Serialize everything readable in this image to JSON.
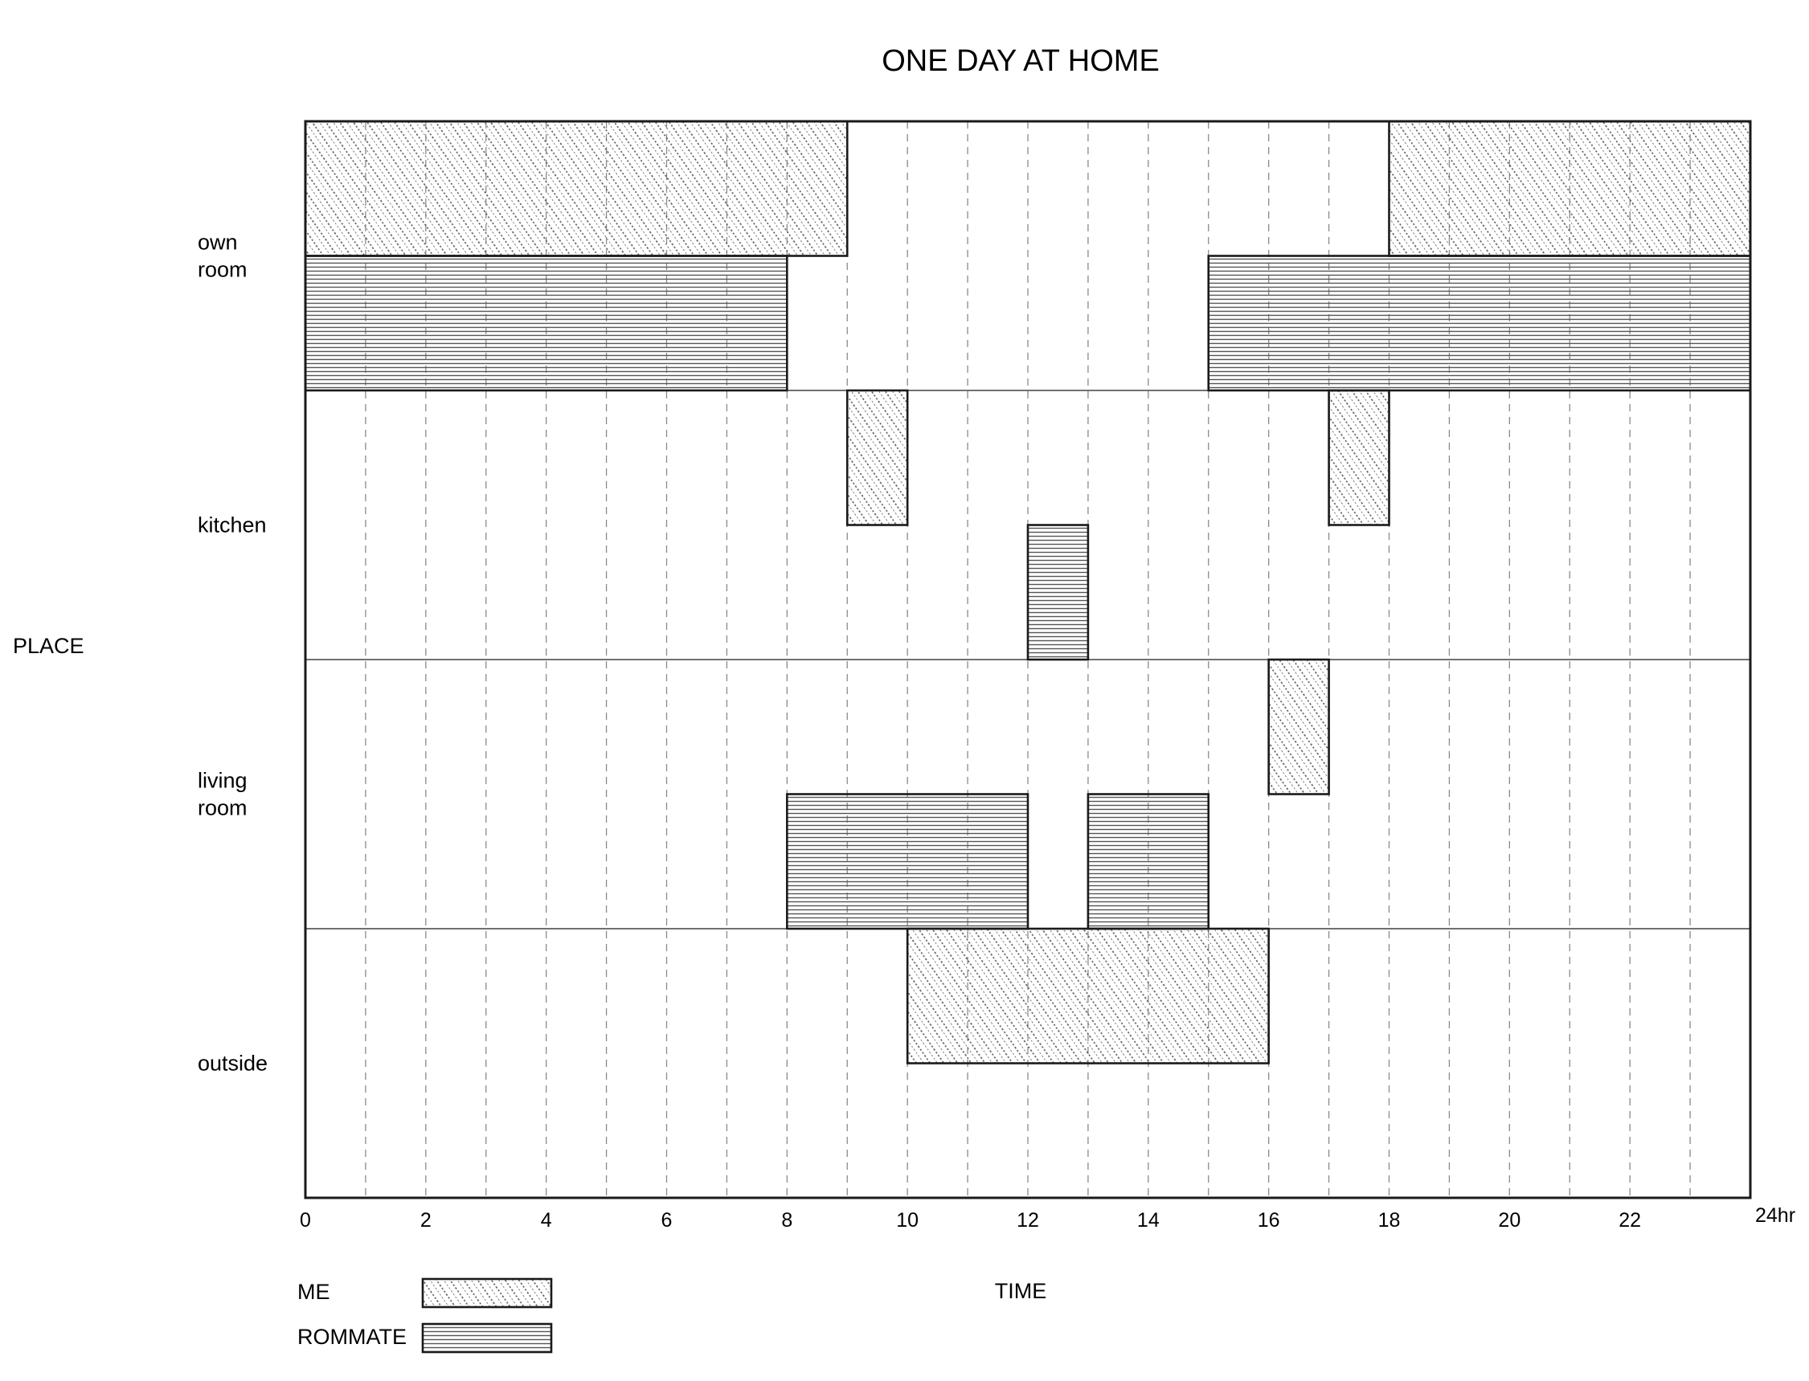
{
  "chart_data": {
    "type": "bar",
    "orientation": "horizontal-timeline",
    "title": "ONE DAY AT HOME",
    "xlabel": "TIME",
    "ylabel": "PLACE",
    "xlim": [
      0,
      24
    ],
    "x_unit_label": "24hr",
    "x_ticks": [
      0,
      2,
      4,
      6,
      8,
      10,
      12,
      14,
      16,
      18,
      20,
      22
    ],
    "grid": "vertical dashed every 1 hr",
    "places": [
      {
        "key": "own",
        "lines": [
          "own",
          "room"
        ]
      },
      {
        "key": "kitchen",
        "lines": [
          "kitchen"
        ]
      },
      {
        "key": "living",
        "lines": [
          "living",
          "room"
        ]
      },
      {
        "key": "outside",
        "lines": [
          "outside"
        ]
      }
    ],
    "series": [
      {
        "name": "ME",
        "pattern": "diagonal-hatch",
        "intervals": [
          {
            "place": "own",
            "start": 0,
            "end": 9
          },
          {
            "place": "kitchen",
            "start": 9,
            "end": 10
          },
          {
            "place": "outside",
            "start": 10,
            "end": 16
          },
          {
            "place": "living",
            "start": 16,
            "end": 17
          },
          {
            "place": "kitchen",
            "start": 17,
            "end": 18
          },
          {
            "place": "own",
            "start": 18,
            "end": 24
          }
        ]
      },
      {
        "name": "ROMMATE",
        "pattern": "horizontal-lines",
        "intervals": [
          {
            "place": "own",
            "start": 0,
            "end": 8
          },
          {
            "place": "living",
            "start": 8,
            "end": 12
          },
          {
            "place": "kitchen",
            "start": 12,
            "end": 13
          },
          {
            "place": "living",
            "start": 13,
            "end": 15
          },
          {
            "place": "own",
            "start": 15,
            "end": 24
          }
        ]
      }
    ],
    "legend_position": "bottom-left",
    "colors": {
      "ink": "#1a1a1a",
      "grid": "#8a8a8a",
      "hatch": "#555555"
    }
  }
}
